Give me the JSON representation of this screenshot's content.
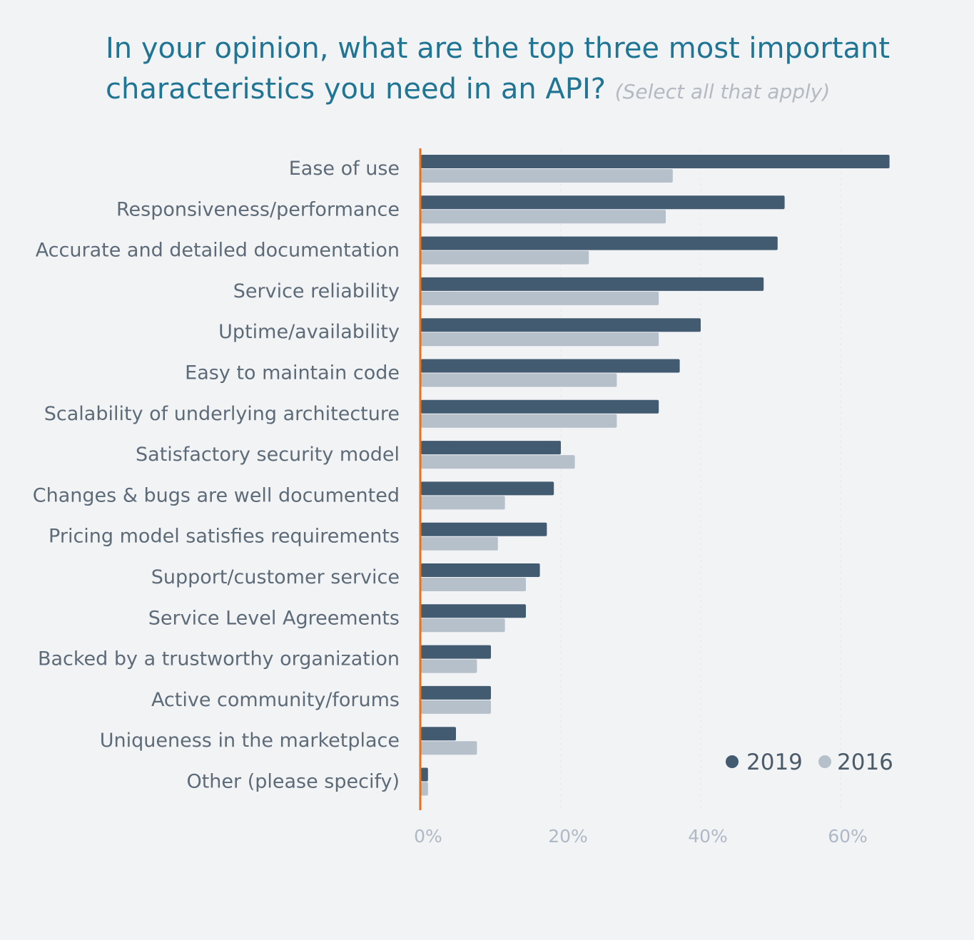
{
  "title": {
    "main": "In your opinion, what are the top three most important characteristics you need in an API?",
    "subtitle": "(Select all that apply)"
  },
  "colors": {
    "series_2019": "#425b70",
    "series_2016": "#b6c0cb",
    "axis_line": "#e37222",
    "title": "#1f7593",
    "background": "#f2f3f5"
  },
  "chart_data": {
    "type": "bar",
    "orientation": "horizontal",
    "title": "In your opinion, what are the top three most important characteristics you need in an API? (Select all that apply)",
    "categories": [
      "Ease of use",
      "Responsiveness/performance",
      "Accurate and detailed documentation",
      "Service reliability",
      "Uptime/availability",
      "Easy to maintain code",
      "Scalability of underlying architecture",
      "Satisfactory security model",
      "Changes & bugs are well documented",
      "Pricing model satisfies requirements",
      "Support/customer service",
      "Service Level Agreements",
      "Backed by a trustworthy organization",
      "Active community/forums",
      "Uniqueness in the marketplace",
      "Other (please specify)"
    ],
    "series": [
      {
        "name": "2019",
        "values": [
          67,
          52,
          51,
          49,
          40,
          37,
          34,
          20,
          19,
          18,
          17,
          15,
          10,
          10,
          5,
          1
        ]
      },
      {
        "name": "2016",
        "values": [
          36,
          35,
          24,
          34,
          34,
          28,
          28,
          22,
          12,
          11,
          15,
          12,
          8,
          10,
          8,
          1
        ]
      }
    ],
    "xlim": [
      0,
      70
    ],
    "xticks": [
      0,
      20,
      40,
      60
    ],
    "tick_labels": [
      "0%",
      "20%",
      "40%",
      "60%"
    ],
    "grid": true,
    "legend": "bottom-right"
  }
}
